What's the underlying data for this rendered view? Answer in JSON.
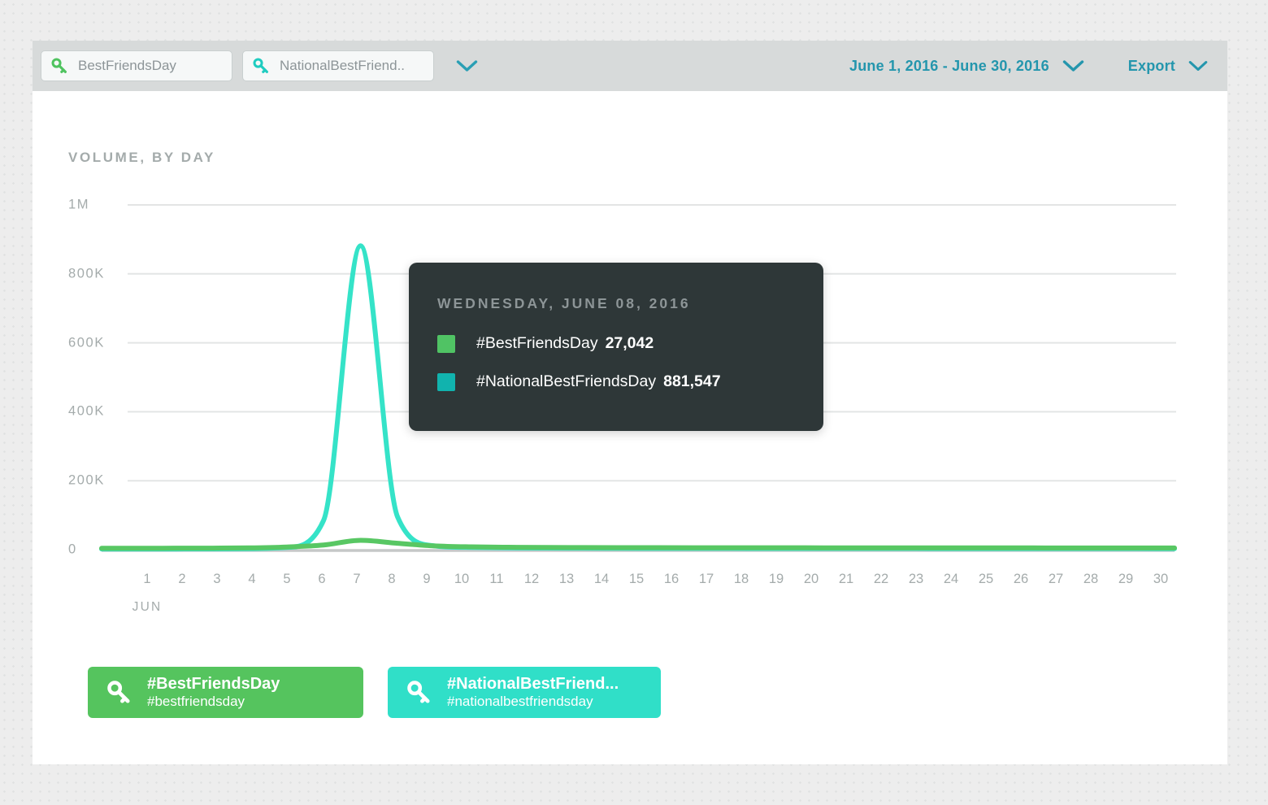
{
  "toolbar": {
    "keywords": [
      {
        "label": "BestFriendsDay",
        "icon_color": "#4fc35f"
      },
      {
        "label": "NationalBestFriend..",
        "icon_color": "#1fccc0"
      }
    ],
    "date_range": "June 1, 2016 - June 30, 2016",
    "export_label": "Export",
    "accent_color": "#2496ad"
  },
  "chart": {
    "title": "VOLUME, BY DAY"
  },
  "chart_data": {
    "type": "line",
    "title": "VOLUME, BY DAY",
    "xlabel": "JUN",
    "ylabel": "",
    "x": [
      1,
      2,
      3,
      4,
      5,
      6,
      7,
      8,
      9,
      10,
      11,
      12,
      13,
      14,
      15,
      16,
      17,
      18,
      19,
      20,
      21,
      22,
      23,
      24,
      25,
      26,
      27,
      28,
      29,
      30
    ],
    "ylim": [
      0,
      1000000
    ],
    "grid": true,
    "legend_position": "bottom",
    "highlighted_x": 8,
    "yticks": [
      {
        "label": "1M",
        "value": 1000000
      },
      {
        "label": "800K",
        "value": 800000
      },
      {
        "label": "600K",
        "value": 600000
      },
      {
        "label": "400K",
        "value": 400000
      },
      {
        "label": "200K",
        "value": 200000
      },
      {
        "label": "0",
        "value": 0
      }
    ],
    "series": [
      {
        "name": "#BestFriendsDay",
        "color": "#58c763",
        "values": [
          4200,
          4100,
          4300,
          4500,
          5200,
          7800,
          13500,
          27042,
          18500,
          11000,
          8200,
          7000,
          6400,
          6100,
          5900,
          5800,
          5700,
          5600,
          5500,
          5500,
          5400,
          5400,
          5300,
          5300,
          5200,
          5200,
          5100,
          5100,
          5000,
          5000
        ]
      },
      {
        "name": "#NationalBestFriendsDay",
        "color": "#35e3c8",
        "values": [
          2000,
          2000,
          2200,
          2400,
          2900,
          6500,
          85000,
          881547,
          95000,
          11000,
          6500,
          5200,
          4600,
          4300,
          4100,
          3900,
          3800,
          3700,
          3600,
          3500,
          3500,
          3400,
          3400,
          3300,
          3300,
          3200,
          3200,
          3100,
          3100,
          3000
        ]
      }
    ]
  },
  "tooltip": {
    "title": "WEDNESDAY, JUNE 08, 2016",
    "rows": [
      {
        "label": "#BestFriendsDay",
        "value": "27,042",
        "swatch": "#50c364"
      },
      {
        "label": "#NationalBestFriendsDay",
        "value": "881,547",
        "swatch": "#11b3ae"
      }
    ]
  },
  "legend_buttons": [
    {
      "title": "#BestFriendsDay",
      "subtitle": "#bestfriendsday",
      "color": "#55c45e"
    },
    {
      "title": "#NationalBestFriend...",
      "subtitle": "#nationalbestfriendsday",
      "color": "#30dfc8"
    }
  ]
}
